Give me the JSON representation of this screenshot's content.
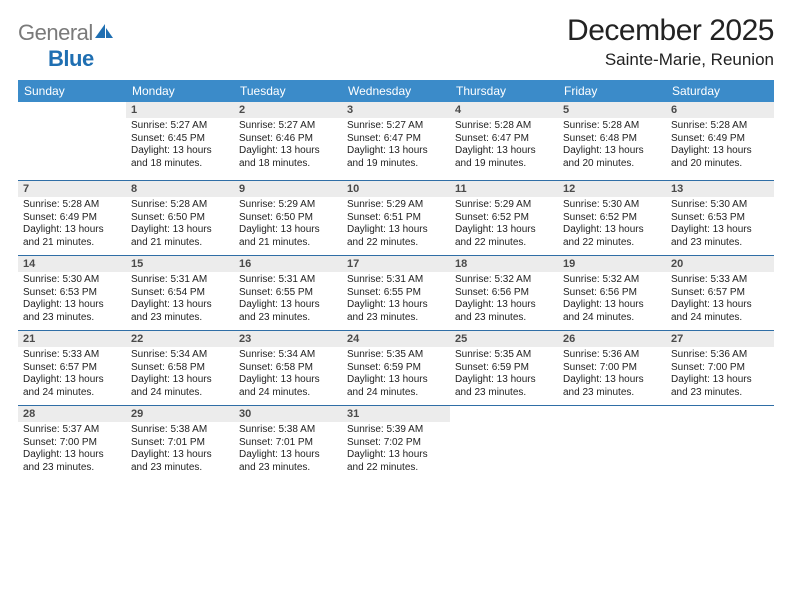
{
  "brand": {
    "general": "General",
    "blue": "Blue"
  },
  "header": {
    "month": "December 2025",
    "location": "Sainte-Marie, Reunion"
  },
  "colors": {
    "header_bg": "#3b8bc9",
    "header_text": "#ffffff",
    "row_border": "#2f6ea6",
    "daynum_bg": "#ececec",
    "daynum_text": "#4a4a4a",
    "body_text": "#222222",
    "logo_gray": "#7a7a7a",
    "logo_blue": "#1f6fb2",
    "page_bg": "#ffffff"
  },
  "typography": {
    "month_title_pt": 30,
    "location_pt": 17,
    "weekday_pt": 12,
    "daynum_pt": 11,
    "cell_text_pt": 10,
    "font_family": "Arial"
  },
  "calendar": {
    "weekdays": [
      "Sunday",
      "Monday",
      "Tuesday",
      "Wednesday",
      "Thursday",
      "Friday",
      "Saturday"
    ],
    "weeks": [
      [
        null,
        {
          "n": "1",
          "sunrise": "Sunrise: 5:27 AM",
          "sunset": "Sunset: 6:45 PM",
          "daylight": "Daylight: 13 hours and 18 minutes."
        },
        {
          "n": "2",
          "sunrise": "Sunrise: 5:27 AM",
          "sunset": "Sunset: 6:46 PM",
          "daylight": "Daylight: 13 hours and 18 minutes."
        },
        {
          "n": "3",
          "sunrise": "Sunrise: 5:27 AM",
          "sunset": "Sunset: 6:47 PM",
          "daylight": "Daylight: 13 hours and 19 minutes."
        },
        {
          "n": "4",
          "sunrise": "Sunrise: 5:28 AM",
          "sunset": "Sunset: 6:47 PM",
          "daylight": "Daylight: 13 hours and 19 minutes."
        },
        {
          "n": "5",
          "sunrise": "Sunrise: 5:28 AM",
          "sunset": "Sunset: 6:48 PM",
          "daylight": "Daylight: 13 hours and 20 minutes."
        },
        {
          "n": "6",
          "sunrise": "Sunrise: 5:28 AM",
          "sunset": "Sunset: 6:49 PM",
          "daylight": "Daylight: 13 hours and 20 minutes."
        }
      ],
      [
        {
          "n": "7",
          "sunrise": "Sunrise: 5:28 AM",
          "sunset": "Sunset: 6:49 PM",
          "daylight": "Daylight: 13 hours and 21 minutes."
        },
        {
          "n": "8",
          "sunrise": "Sunrise: 5:28 AM",
          "sunset": "Sunset: 6:50 PM",
          "daylight": "Daylight: 13 hours and 21 minutes."
        },
        {
          "n": "9",
          "sunrise": "Sunrise: 5:29 AM",
          "sunset": "Sunset: 6:50 PM",
          "daylight": "Daylight: 13 hours and 21 minutes."
        },
        {
          "n": "10",
          "sunrise": "Sunrise: 5:29 AM",
          "sunset": "Sunset: 6:51 PM",
          "daylight": "Daylight: 13 hours and 22 minutes."
        },
        {
          "n": "11",
          "sunrise": "Sunrise: 5:29 AM",
          "sunset": "Sunset: 6:52 PM",
          "daylight": "Daylight: 13 hours and 22 minutes."
        },
        {
          "n": "12",
          "sunrise": "Sunrise: 5:30 AM",
          "sunset": "Sunset: 6:52 PM",
          "daylight": "Daylight: 13 hours and 22 minutes."
        },
        {
          "n": "13",
          "sunrise": "Sunrise: 5:30 AM",
          "sunset": "Sunset: 6:53 PM",
          "daylight": "Daylight: 13 hours and 23 minutes."
        }
      ],
      [
        {
          "n": "14",
          "sunrise": "Sunrise: 5:30 AM",
          "sunset": "Sunset: 6:53 PM",
          "daylight": "Daylight: 13 hours and 23 minutes."
        },
        {
          "n": "15",
          "sunrise": "Sunrise: 5:31 AM",
          "sunset": "Sunset: 6:54 PM",
          "daylight": "Daylight: 13 hours and 23 minutes."
        },
        {
          "n": "16",
          "sunrise": "Sunrise: 5:31 AM",
          "sunset": "Sunset: 6:55 PM",
          "daylight": "Daylight: 13 hours and 23 minutes."
        },
        {
          "n": "17",
          "sunrise": "Sunrise: 5:31 AM",
          "sunset": "Sunset: 6:55 PM",
          "daylight": "Daylight: 13 hours and 23 minutes."
        },
        {
          "n": "18",
          "sunrise": "Sunrise: 5:32 AM",
          "sunset": "Sunset: 6:56 PM",
          "daylight": "Daylight: 13 hours and 23 minutes."
        },
        {
          "n": "19",
          "sunrise": "Sunrise: 5:32 AM",
          "sunset": "Sunset: 6:56 PM",
          "daylight": "Daylight: 13 hours and 24 minutes."
        },
        {
          "n": "20",
          "sunrise": "Sunrise: 5:33 AM",
          "sunset": "Sunset: 6:57 PM",
          "daylight": "Daylight: 13 hours and 24 minutes."
        }
      ],
      [
        {
          "n": "21",
          "sunrise": "Sunrise: 5:33 AM",
          "sunset": "Sunset: 6:57 PM",
          "daylight": "Daylight: 13 hours and 24 minutes."
        },
        {
          "n": "22",
          "sunrise": "Sunrise: 5:34 AM",
          "sunset": "Sunset: 6:58 PM",
          "daylight": "Daylight: 13 hours and 24 minutes."
        },
        {
          "n": "23",
          "sunrise": "Sunrise: 5:34 AM",
          "sunset": "Sunset: 6:58 PM",
          "daylight": "Daylight: 13 hours and 24 minutes."
        },
        {
          "n": "24",
          "sunrise": "Sunrise: 5:35 AM",
          "sunset": "Sunset: 6:59 PM",
          "daylight": "Daylight: 13 hours and 24 minutes."
        },
        {
          "n": "25",
          "sunrise": "Sunrise: 5:35 AM",
          "sunset": "Sunset: 6:59 PM",
          "daylight": "Daylight: 13 hours and 23 minutes."
        },
        {
          "n": "26",
          "sunrise": "Sunrise: 5:36 AM",
          "sunset": "Sunset: 7:00 PM",
          "daylight": "Daylight: 13 hours and 23 minutes."
        },
        {
          "n": "27",
          "sunrise": "Sunrise: 5:36 AM",
          "sunset": "Sunset: 7:00 PM",
          "daylight": "Daylight: 13 hours and 23 minutes."
        }
      ],
      [
        {
          "n": "28",
          "sunrise": "Sunrise: 5:37 AM",
          "sunset": "Sunset: 7:00 PM",
          "daylight": "Daylight: 13 hours and 23 minutes."
        },
        {
          "n": "29",
          "sunrise": "Sunrise: 5:38 AM",
          "sunset": "Sunset: 7:01 PM",
          "daylight": "Daylight: 13 hours and 23 minutes."
        },
        {
          "n": "30",
          "sunrise": "Sunrise: 5:38 AM",
          "sunset": "Sunset: 7:01 PM",
          "daylight": "Daylight: 13 hours and 23 minutes."
        },
        {
          "n": "31",
          "sunrise": "Sunrise: 5:39 AM",
          "sunset": "Sunset: 7:02 PM",
          "daylight": "Daylight: 13 hours and 22 minutes."
        },
        null,
        null,
        null
      ]
    ]
  }
}
